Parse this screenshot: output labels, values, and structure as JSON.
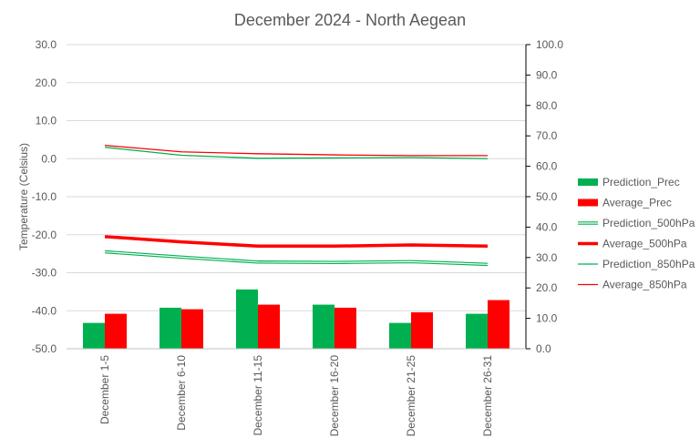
{
  "chart_data": {
    "type": "bar",
    "title": "December 2024 - North Aegean",
    "ylabel": "Temperature (Celsius)",
    "y2label": "",
    "categories": [
      "December 1-5",
      "December 6-10",
      "December 11-15",
      "December 16-20",
      "December 21-25",
      "December 26-31"
    ],
    "ylim": [
      -50,
      30
    ],
    "y2lim": [
      0,
      100
    ],
    "y_ticks": [
      "30.0",
      "20.0",
      "10.0",
      "0.0",
      "-10.0",
      "-20.0",
      "-30.0",
      "-40.0",
      "-50.0"
    ],
    "y2_ticks": [
      "100.0",
      "90.0",
      "80.0",
      "70.0",
      "60.0",
      "50.0",
      "40.0",
      "30.0",
      "20.0",
      "10.0",
      "0.0"
    ],
    "grid": true,
    "legend_position": "right",
    "bar_series": [
      {
        "name": "Prediction_Prec",
        "axis": "right",
        "color": "#00b050",
        "values": [
          8.5,
          13.5,
          19.5,
          14.5,
          8.5,
          11.5
        ]
      },
      {
        "name": "Average_Prec",
        "axis": "right",
        "color": "#ff0000",
        "values": [
          11.5,
          13.0,
          14.5,
          13.5,
          12.0,
          16.0
        ]
      }
    ],
    "line_series": [
      {
        "name": "Prediction_500hPa",
        "axis": "left",
        "color": "#00b050",
        "style": "double",
        "values": [
          -24.5,
          -25.9,
          -27.2,
          -27.3,
          -27.1,
          -27.8
        ]
      },
      {
        "name": "Average_500hPa",
        "axis": "left",
        "color": "#ff0000",
        "style": "thick",
        "values": [
          -20.5,
          -21.9,
          -23.0,
          -23.0,
          -22.7,
          -23.0
        ]
      },
      {
        "name": "Prediction_850hPa",
        "axis": "left",
        "color": "#00b050",
        "style": "thin",
        "values": [
          3.0,
          0.9,
          0.1,
          0.2,
          0.3,
          0.0
        ]
      },
      {
        "name": "Average_850hPa",
        "axis": "left",
        "color": "#ff0000",
        "style": "thin",
        "values": [
          3.5,
          1.8,
          1.3,
          1.0,
          0.8,
          0.8
        ]
      }
    ]
  }
}
